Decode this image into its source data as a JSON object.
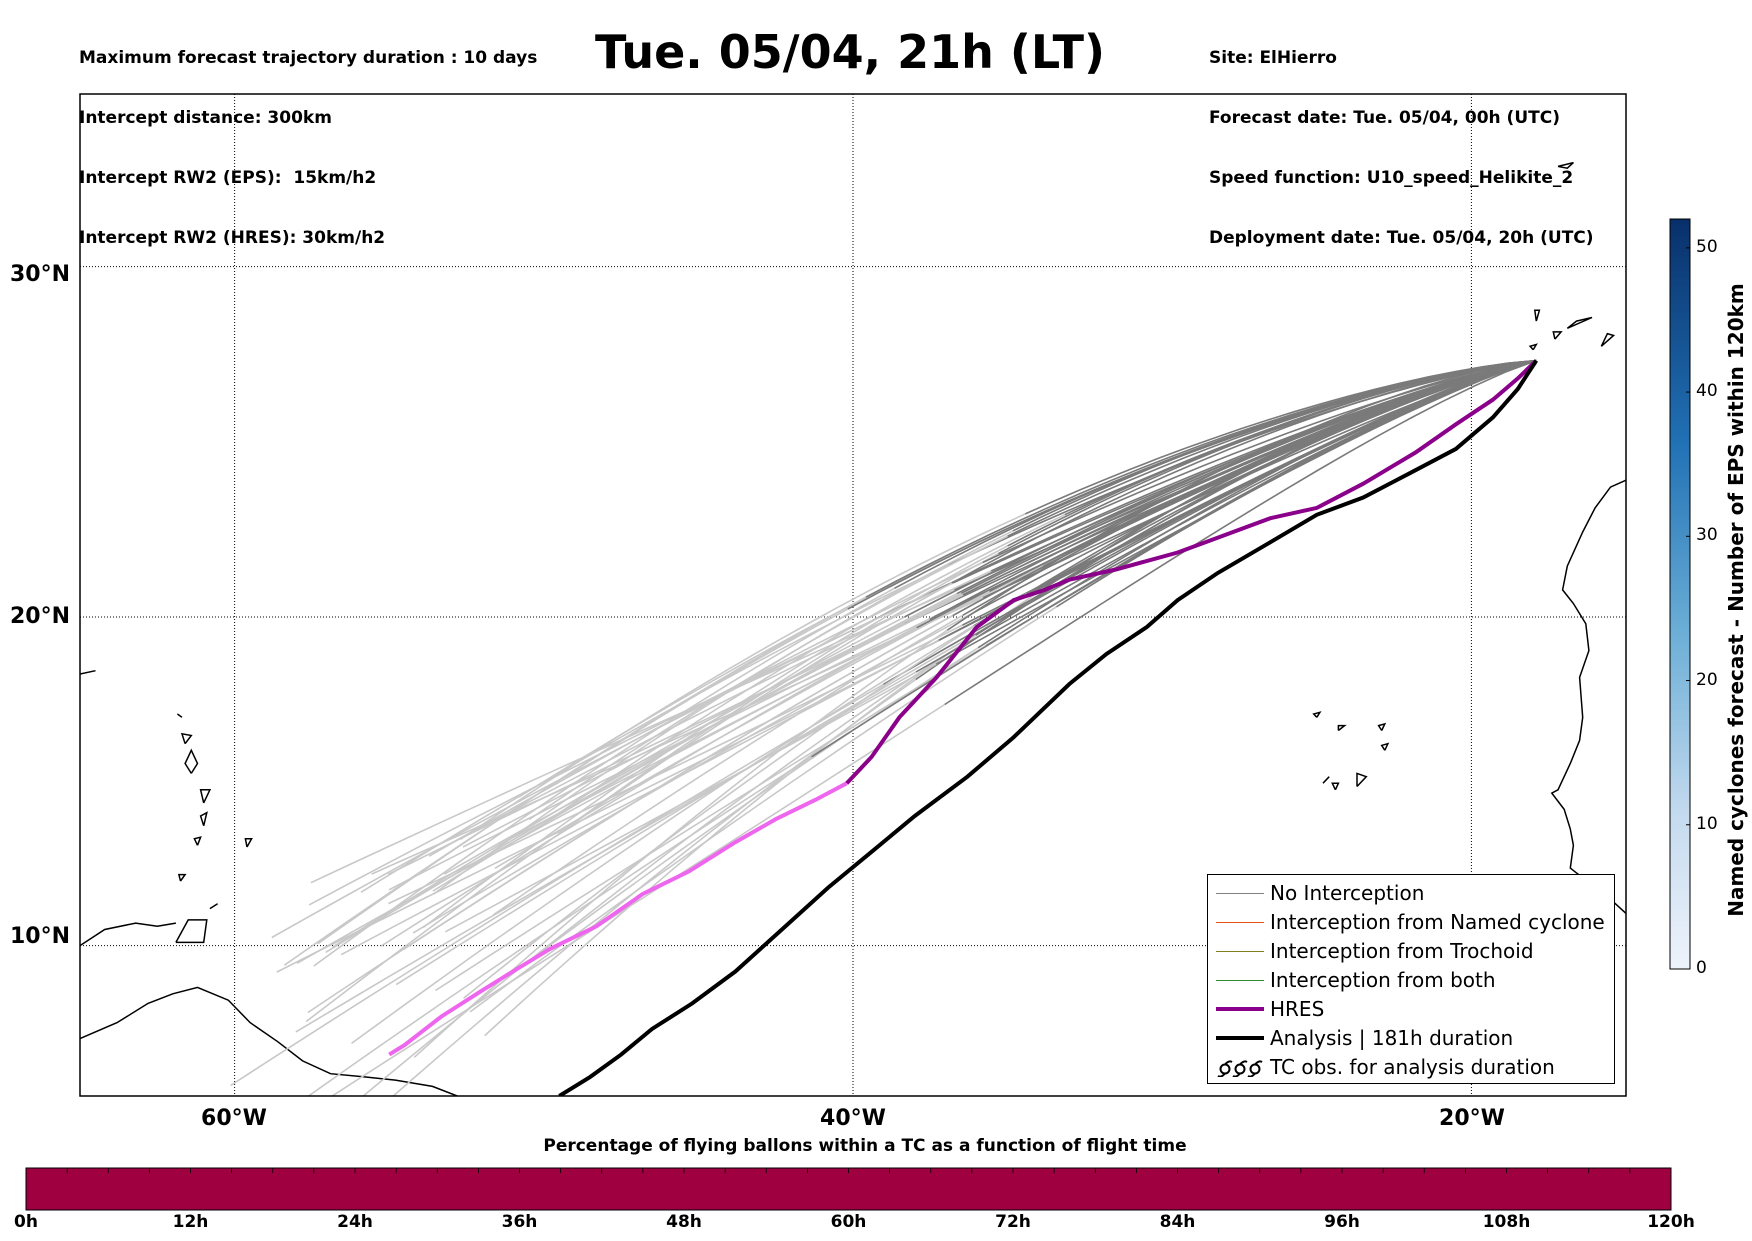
{
  "header": {
    "left": [
      "Maximum forecast trajectory duration : 10 days",
      "Intercept distance: 300km",
      "Intercept RW2 (EPS):  15km/h2",
      "Intercept RW2 (HRES): 30km/h2"
    ],
    "title": "Tue. 05/04, 21h (LT)",
    "right": [
      "Site: ElHierro",
      "Forecast date: Tue. 05/04, 00h (UTC)",
      "Speed function: U10_speed_Helikite_2",
      "Deployment date: Tue. 05/04, 20h (UTC)"
    ]
  },
  "map": {
    "lat_labels": [
      "30°N",
      "20°N",
      "10°N"
    ],
    "lon_labels": [
      "60°W",
      "40°W",
      "20°W"
    ],
    "lon_range": [
      -65,
      -15
    ],
    "lat_range": [
      5.3,
      34.6
    ],
    "colors": {
      "no_interception": "#7a7a7a",
      "eps_early": "#c8c8c8",
      "hres": "#8b008b",
      "hres_early": "#ee66ee",
      "analysis": "#000000",
      "coast": "#000000"
    }
  },
  "legend": {
    "items": [
      {
        "label": "No Interception",
        "color": "#808080",
        "width": 1.5,
        "marker": "line"
      },
      {
        "label": "Interception from Named cyclone",
        "color": "#e8501e",
        "width": 1.5,
        "marker": "line"
      },
      {
        "label": "Interception from Trochoid",
        "color": "#808020",
        "width": 1.5,
        "marker": "line"
      },
      {
        "label": "Interception from both",
        "color": "#2a8a2a",
        "width": 1.5,
        "marker": "line"
      },
      {
        "label": "HRES",
        "color": "#8b008b",
        "width": 4,
        "marker": "line"
      },
      {
        "label": "Analysis | 181h duration",
        "color": "#000000",
        "width": 4,
        "marker": "line"
      },
      {
        "label": "TC obs. for analysis duration",
        "color": "#000000",
        "width": 1.5,
        "marker": "cyclone"
      }
    ]
  },
  "colorbar": {
    "title": "Named cyclones forecast - Number of EPS within 120km",
    "ticks": [
      "0",
      "10",
      "20",
      "30",
      "40",
      "50"
    ],
    "min": 0,
    "max": 52,
    "color_low": "#e6eef8",
    "color_high": "#08306b"
  },
  "hbar": {
    "title": "Percentage of flying ballons within a TC as a function of flight time",
    "ticks": [
      "0h",
      "12h",
      "24h",
      "36h",
      "48h",
      "60h",
      "72h",
      "84h",
      "96h",
      "108h",
      "120h"
    ],
    "fill_color": "#9e0040",
    "values_percent": [
      0,
      0,
      0,
      0,
      0,
      0,
      0,
      0,
      0,
      0,
      0,
      0,
      0,
      0,
      0,
      0,
      0,
      0,
      0,
      0,
      0,
      0,
      0,
      0,
      0,
      0,
      0,
      0,
      0,
      0,
      0,
      0,
      0,
      0,
      0,
      0,
      0,
      0,
      0,
      0,
      0
    ]
  },
  "chart_data": {
    "type": "line",
    "title": "Tue. 05/04, 21h (LT)",
    "xlabel": "",
    "ylabel": "",
    "series": [
      {
        "name": "HRES",
        "x": [
          -17.9,
          -18.5,
          -19.3,
          -20.5,
          -21.8,
          -23.5,
          -25.0,
          -26.5,
          -28.0,
          -29.5,
          -31.5,
          -33.0,
          -33.8,
          -34.8,
          -36.0,
          -37.3,
          -38.5,
          -39.4,
          -40.2,
          -41.2,
          -42.5,
          -43.8,
          -45.3,
          -46.8,
          -48.3,
          -49.8,
          -51.0,
          -52.0,
          -53.3,
          -54.5,
          -55.0
        ],
        "y": [
          27.4,
          26.9,
          26.3,
          25.6,
          24.8,
          23.9,
          23.2,
          22.9,
          22.4,
          21.9,
          21.4,
          21.1,
          20.8,
          20.5,
          19.7,
          18.2,
          17.0,
          15.8,
          15.0,
          14.5,
          13.9,
          13.2,
          12.3,
          11.6,
          10.6,
          9.9,
          9.2,
          8.6,
          7.8,
          6.9,
          6.6
        ]
      },
      {
        "name": "Analysis | 181h duration",
        "x": [
          -17.9,
          -18.5,
          -19.3,
          -20.5,
          -22.0,
          -23.5,
          -25.0,
          -26.5,
          -28.2,
          -29.5,
          -30.5,
          -31.8,
          -33.0,
          -34.8,
          -36.3,
          -38.0,
          -39.4,
          -40.8,
          -42.3,
          -43.8,
          -45.2,
          -46.5,
          -47.5,
          -48.5,
          -49.5
        ],
        "y": [
          27.4,
          26.6,
          25.8,
          24.9,
          24.2,
          23.5,
          23.0,
          22.2,
          21.3,
          20.5,
          19.7,
          18.9,
          18.0,
          16.4,
          15.2,
          14.0,
          12.9,
          11.8,
          10.5,
          9.2,
          8.2,
          7.4,
          6.6,
          5.9,
          5.3
        ]
      }
    ],
    "ensemble_members": 51,
    "xlim": [
      -65,
      -15
    ],
    "ylim": [
      5.3,
      34.6
    ]
  }
}
